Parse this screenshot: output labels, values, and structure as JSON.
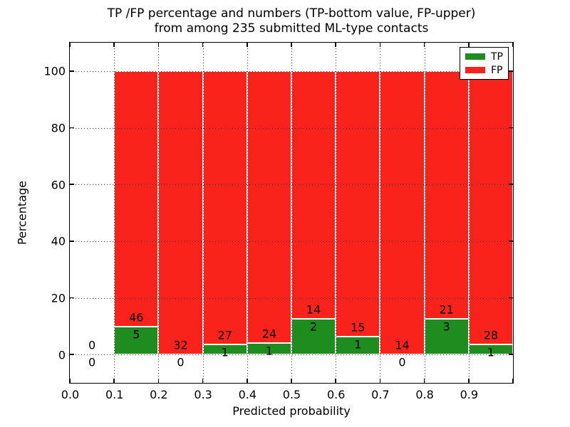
{
  "title": {
    "line1": "TP /FP percentage and numbers (TP-bottom value, FP-upper)",
    "line2": "from among 235 submitted ML-type contacts"
  },
  "chart_data": {
    "type": "bar",
    "stacked": true,
    "title": "TP /FP percentage and numbers (TP-bottom value, FP-upper) from among 235 submitted ML-type contacts",
    "xlabel": "Predicted probability",
    "ylabel": "Percentage",
    "xlim": [
      0,
      1
    ],
    "ylim": [
      -10,
      110
    ],
    "grid": "dotted-over-bars",
    "total_contacts": 235,
    "legend": {
      "position": "upper right",
      "items": [
        {
          "label": "TP",
          "color": "#1e8c1e"
        },
        {
          "label": "FP",
          "color": "#fa231c"
        }
      ]
    },
    "xticks": [
      {
        "value": 0.0,
        "label": "0.0"
      },
      {
        "value": 0.1,
        "label": "0.1"
      },
      {
        "value": 0.2,
        "label": "0.2"
      },
      {
        "value": 0.3,
        "label": "0.3"
      },
      {
        "value": 0.4,
        "label": "0.4"
      },
      {
        "value": 0.5,
        "label": "0.5"
      },
      {
        "value": 0.6,
        "label": "0.6"
      },
      {
        "value": 0.7,
        "label": "0.7"
      },
      {
        "value": 0.8,
        "label": "0.8"
      },
      {
        "value": 0.9,
        "label": "0.9"
      },
      {
        "value": 1.0,
        "label": ""
      }
    ],
    "yticks": [
      {
        "value": 0,
        "label": "0"
      },
      {
        "value": 20,
        "label": "20"
      },
      {
        "value": 40,
        "label": "40"
      },
      {
        "value": 60,
        "label": "60"
      },
      {
        "value": 80,
        "label": "80"
      },
      {
        "value": 100,
        "label": "100"
      }
    ],
    "bins": [
      {
        "range": [
          0.0,
          0.1
        ],
        "tp_count": 0,
        "fp_count": 0,
        "tp_pct": 0,
        "fp_pct": 0
      },
      {
        "range": [
          0.1,
          0.2
        ],
        "tp_count": 5,
        "fp_count": 46,
        "tp_pct": 9.8,
        "fp_pct": 90.2
      },
      {
        "range": [
          0.2,
          0.3
        ],
        "tp_count": 0,
        "fp_count": 32,
        "tp_pct": 0,
        "fp_pct": 100
      },
      {
        "range": [
          0.3,
          0.4
        ],
        "tp_count": 1,
        "fp_count": 27,
        "tp_pct": 3.57,
        "fp_pct": 96.43
      },
      {
        "range": [
          0.4,
          0.5
        ],
        "tp_count": 1,
        "fp_count": 24,
        "tp_pct": 4.0,
        "fp_pct": 96.0
      },
      {
        "range": [
          0.5,
          0.6
        ],
        "tp_count": 2,
        "fp_count": 14,
        "tp_pct": 12.5,
        "fp_pct": 87.5
      },
      {
        "range": [
          0.6,
          0.7
        ],
        "tp_count": 1,
        "fp_count": 15,
        "tp_pct": 6.25,
        "fp_pct": 93.75
      },
      {
        "range": [
          0.7,
          0.8
        ],
        "tp_count": 0,
        "fp_count": 14,
        "tp_pct": 0,
        "fp_pct": 100
      },
      {
        "range": [
          0.8,
          0.9
        ],
        "tp_count": 3,
        "fp_count": 21,
        "tp_pct": 12.5,
        "fp_pct": 87.5
      },
      {
        "range": [
          0.9,
          1.0
        ],
        "tp_count": 1,
        "fp_count": 28,
        "tp_pct": 3.45,
        "fp_pct": 96.55
      }
    ]
  }
}
